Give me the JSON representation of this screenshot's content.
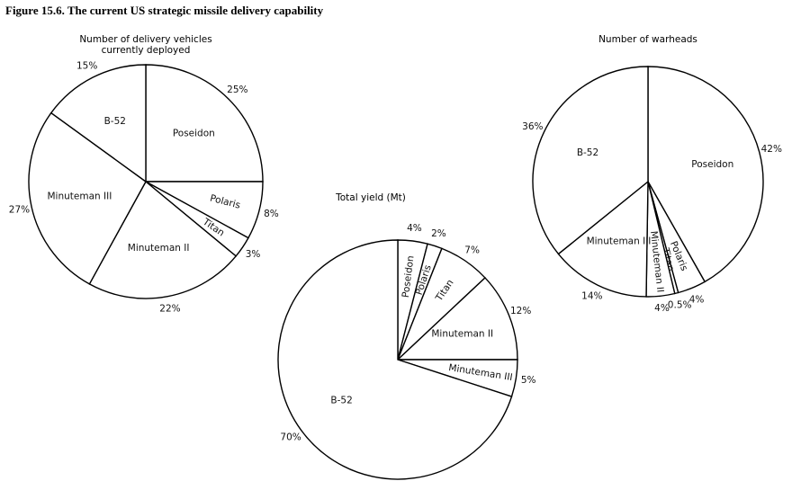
{
  "figure_title": "Figure 15.6. The current US strategic missile delivery capability",
  "chart_data": [
    {
      "type": "pie",
      "title": "Number of delivery vehicles currently deployed",
      "categories": [
        "Poseidon",
        "Polaris",
        "Titan",
        "Minuteman II",
        "Minuteman III",
        "B-52"
      ],
      "values": [
        25,
        8,
        3,
        22,
        27,
        15
      ],
      "value_labels": [
        "25%",
        "8%",
        "3%",
        "22%",
        "27%",
        "15%"
      ],
      "color": "#ffffff"
    },
    {
      "type": "pie",
      "title": "Total yield (Mt)",
      "categories": [
        "Poseidon",
        "Polaris",
        "Titan",
        "Minuteman II",
        "Minuteman III",
        "B-52"
      ],
      "values": [
        4,
        2,
        7,
        12,
        5,
        70
      ],
      "value_labels": [
        "4%",
        "2%",
        "7%",
        "12%",
        "5%",
        "70%"
      ],
      "color": "#ffffff"
    },
    {
      "type": "pie",
      "title": "Number of warheads",
      "categories": [
        "Poseidon",
        "Polaris",
        "Titan",
        "Minuteman II",
        "Minuteman III",
        "B-52"
      ],
      "values": [
        42,
        4,
        0.5,
        4,
        14,
        36
      ],
      "value_labels": [
        "42%",
        "4%",
        "0.5%",
        "4%",
        "14%",
        "36%"
      ],
      "color": "#ffffff"
    }
  ]
}
